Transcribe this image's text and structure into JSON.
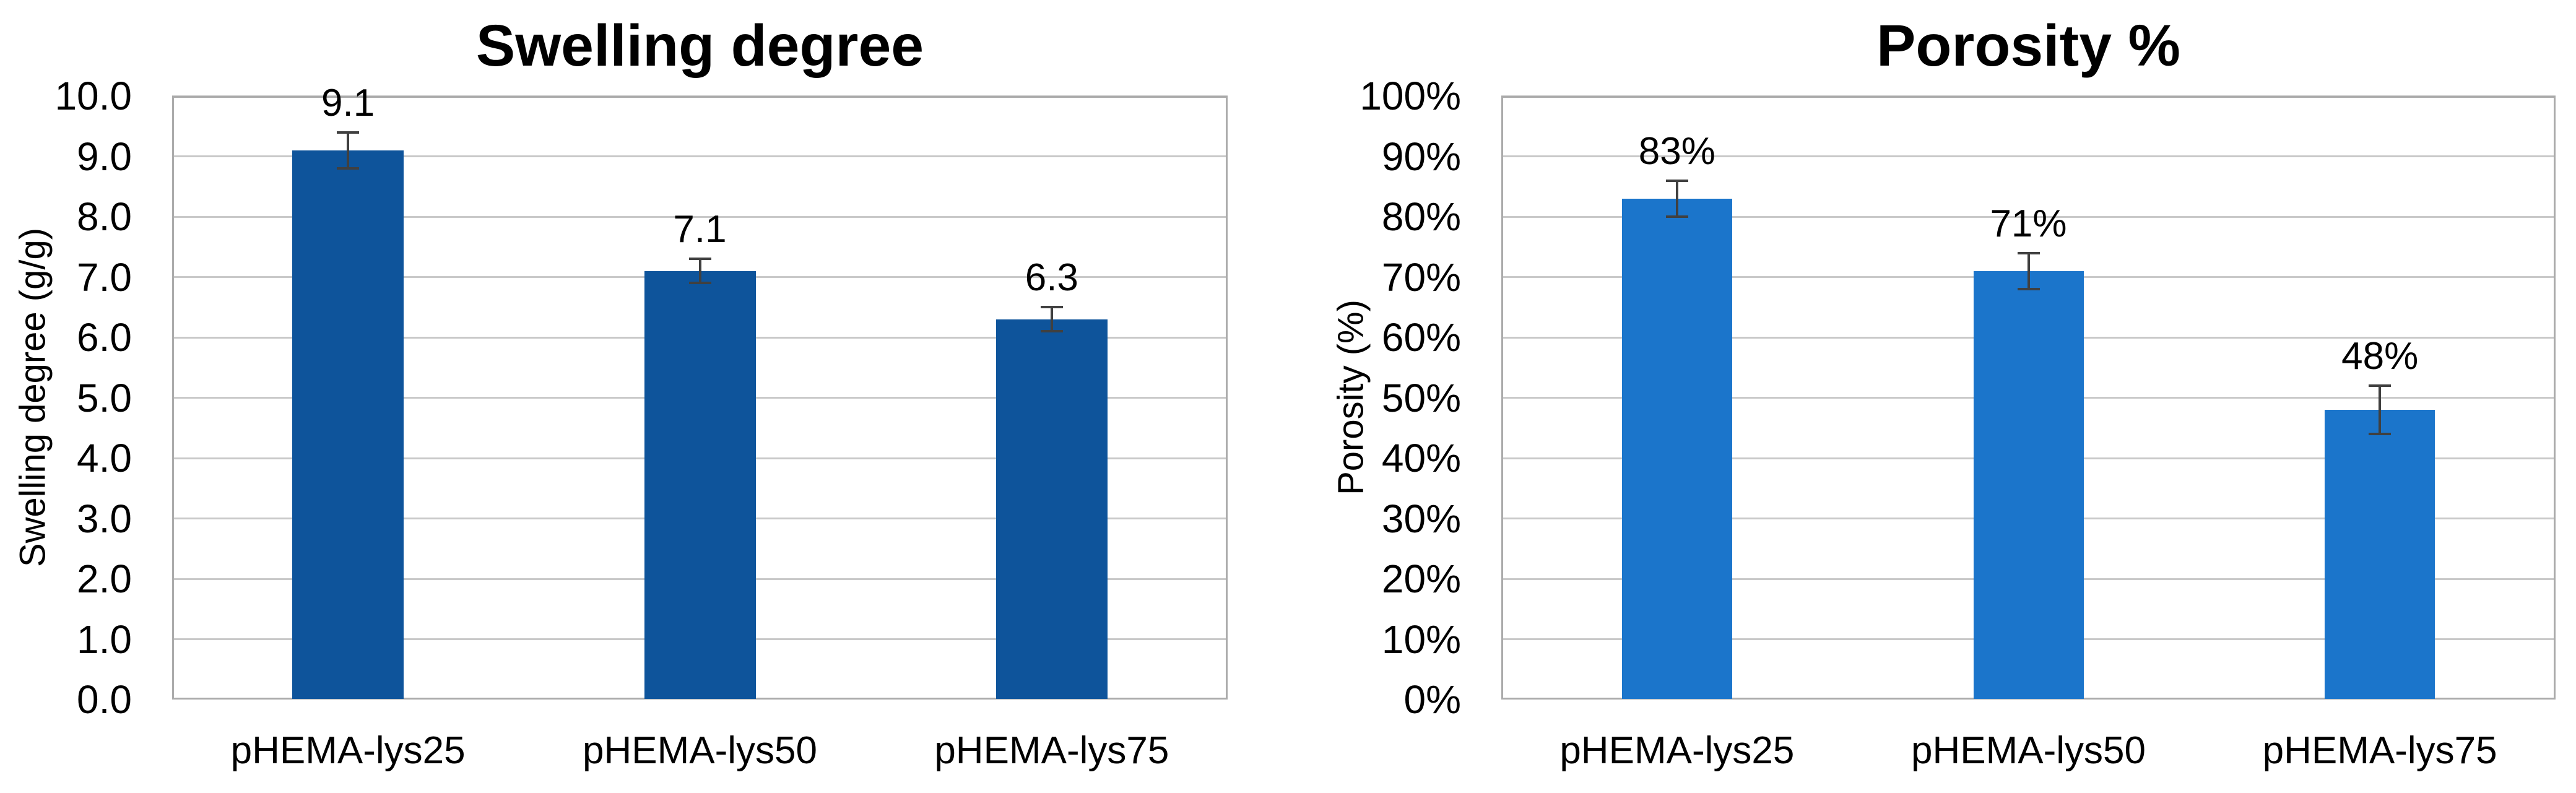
{
  "figure": {
    "background": "#ffffff",
    "colors": {
      "gridline": "#c9c9c9",
      "plot_border": "#ababab",
      "error_bar": "#404040",
      "text": "#000000"
    }
  },
  "chart_data": [
    {
      "type": "bar",
      "title": "Swelling degree",
      "xlabel": "",
      "ylabel": "Swelling degree (g/g)",
      "categories": [
        "pHEMA-lys25",
        "pHEMA-lys50",
        "pHEMA-lys75"
      ],
      "values": [
        9.1,
        7.1,
        6.3
      ],
      "error_bars": [
        0.3,
        0.2,
        0.2
      ],
      "data_labels": [
        "9.1",
        "7.1",
        "6.3"
      ],
      "ylim": [
        0,
        10
      ],
      "ytick_step": 1,
      "ytick_labels": [
        "0.0",
        "1.0",
        "2.0",
        "3.0",
        "4.0",
        "5.0",
        "6.0",
        "7.0",
        "8.0",
        "9.0",
        "10.0"
      ],
      "grid": true,
      "legend_position": "none",
      "bar_color": "#0e549b"
    },
    {
      "type": "bar",
      "title": "Porosity %",
      "xlabel": "",
      "ylabel": "Porosity (%)",
      "categories": [
        "pHEMA-lys25",
        "pHEMA-lys50",
        "pHEMA-lys75"
      ],
      "values": [
        83,
        71,
        48
      ],
      "error_bars": [
        3,
        3,
        4
      ],
      "data_labels": [
        "83%",
        "71%",
        "48%"
      ],
      "ylim": [
        0,
        100
      ],
      "ytick_step": 10,
      "ytick_labels": [
        "0%",
        "10%",
        "20%",
        "30%",
        "40%",
        "50%",
        "60%",
        "70%",
        "80%",
        "90%",
        "100%"
      ],
      "grid": true,
      "legend_position": "none",
      "bar_color": "#1b75cb"
    }
  ]
}
